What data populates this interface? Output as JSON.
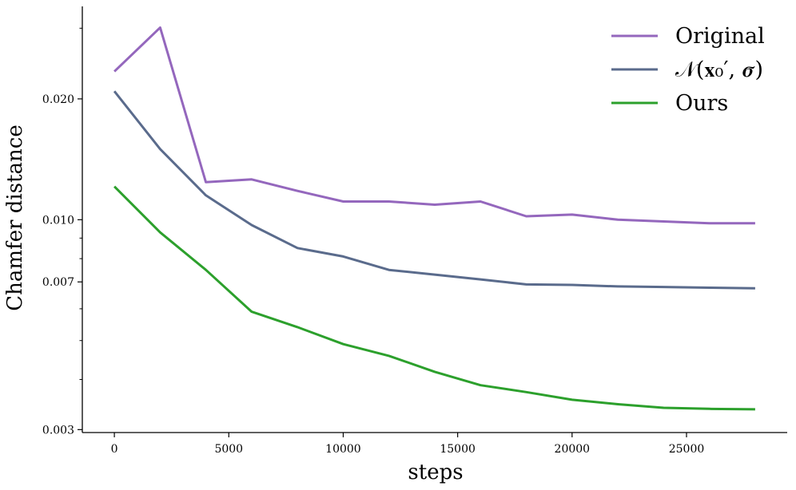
{
  "chart_data": {
    "type": "line",
    "xlabel": "steps",
    "ylabel": "Chamfer distance",
    "x_scale": "linear",
    "y_scale": "log",
    "xlim": [
      -1400,
      29400
    ],
    "ylim": [
      0.00295,
      0.034
    ],
    "x_ticks": [
      0,
      5000,
      10000,
      15000,
      20000,
      25000
    ],
    "x_tick_labels": [
      "0",
      "5000",
      "10000",
      "15000",
      "20000",
      "25000"
    ],
    "y_ticks": [
      0.003,
      0.007,
      0.01,
      0.02
    ],
    "y_tick_labels": [
      "0.003",
      "0.007",
      "0.010",
      "0.020"
    ],
    "y_minor_ticks": [
      0.004,
      0.005,
      0.006,
      0.008,
      0.009,
      0.03
    ],
    "grid": false,
    "legend": "top-right",
    "x": [
      0,
      2000,
      4000,
      6000,
      8000,
      10000,
      12000,
      14000,
      16000,
      18000,
      20000,
      22000,
      24000,
      26000,
      28000
    ],
    "series": [
      {
        "name": "Original",
        "legend_text": "Original",
        "color": "#9467bd",
        "values": [
          0.0234,
          0.0301,
          0.0124,
          0.0126,
          0.0118,
          0.0111,
          0.0111,
          0.0109,
          0.0111,
          0.0102,
          0.0103,
          0.01,
          0.0099,
          0.0098,
          0.0098
        ]
      },
      {
        "name": "N(x0', sigma)",
        "legend_text": "𝒩(𝐱₀′, 𝝈)",
        "color": "#5a6b8c",
        "values": [
          0.0209,
          0.015,
          0.0115,
          0.0097,
          0.0085,
          0.0081,
          0.0075,
          0.0073,
          0.0071,
          0.0069,
          0.00688,
          0.00682,
          0.0068,
          0.00677,
          0.00675
        ]
      },
      {
        "name": "Ours",
        "legend_text": "Ours",
        "color": "#2ca02c",
        "values": [
          0.0121,
          0.0093,
          0.0075,
          0.0059,
          0.0054,
          0.0049,
          0.00458,
          0.00418,
          0.00387,
          0.00372,
          0.00356,
          0.00347,
          0.0034,
          0.00338,
          0.00337
        ]
      }
    ]
  }
}
